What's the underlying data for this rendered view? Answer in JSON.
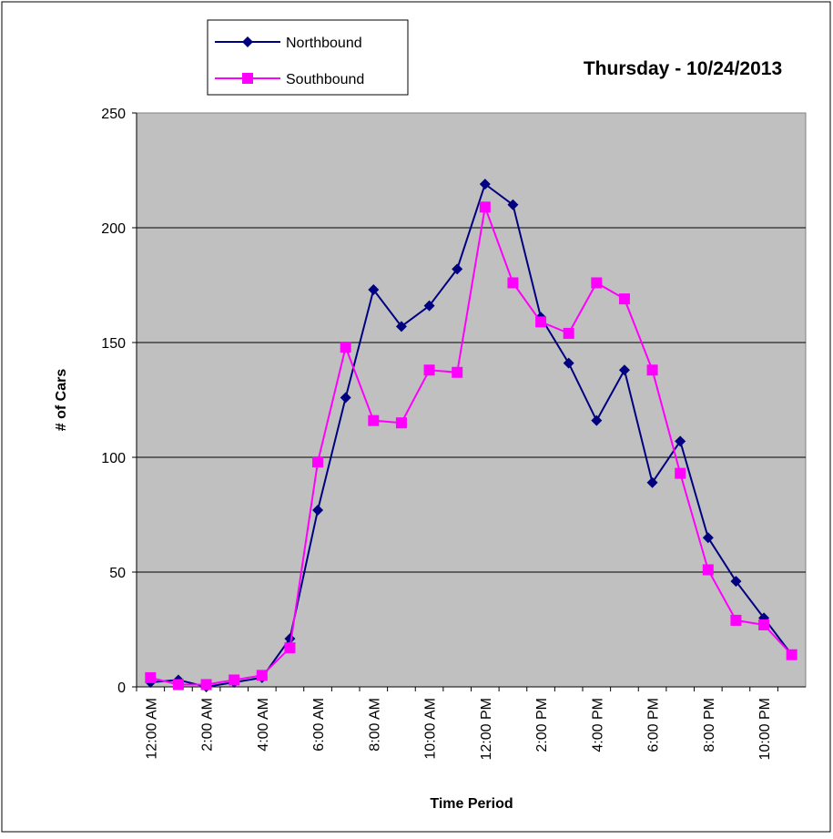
{
  "chart_data": {
    "type": "line",
    "title": "Thursday - 10/24/2013",
    "x_label": "Time Period",
    "y_label": "# of Cars",
    "categories": [
      "12:00 AM",
      null,
      "2:00 AM",
      null,
      "4:00 AM",
      null,
      "6:00 AM",
      null,
      "8:00 AM",
      null,
      "10:00 AM",
      null,
      "12:00 PM",
      null,
      "2:00 PM",
      null,
      "4:00 PM",
      null,
      "6:00 PM",
      null,
      "8:00 PM",
      null,
      "10:00 PM",
      null
    ],
    "series": [
      {
        "name": "Northbound",
        "color": "#000080",
        "marker": "diamond",
        "values": [
          2,
          3,
          0,
          2,
          4,
          21,
          77,
          126,
          173,
          157,
          166,
          182,
          219,
          210,
          161,
          141,
          116,
          138,
          89,
          107,
          65,
          46,
          30,
          14
        ]
      },
      {
        "name": "Southbound",
        "color": "#ff00ff",
        "marker": "square",
        "values": [
          4,
          1,
          1,
          3,
          5,
          17,
          98,
          148,
          116,
          115,
          138,
          137,
          209,
          176,
          159,
          154,
          176,
          169,
          138,
          93,
          51,
          29,
          27,
          14
        ]
      }
    ],
    "ylim": [
      0,
      250
    ],
    "yticks": [
      0,
      50,
      100,
      150,
      200,
      250
    ],
    "grid": true,
    "legend": "top-left"
  }
}
